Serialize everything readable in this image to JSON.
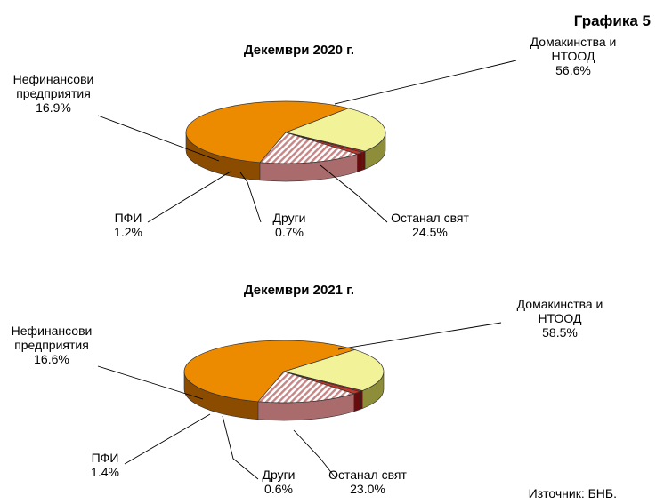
{
  "figure_label": "Графика 5",
  "source": "Източник: БНБ.",
  "colors": {
    "households": "#ED8B00",
    "households_side": "#8B4C00",
    "rest_of_world": "#F2F298",
    "rest_of_world_side": "#8E8E3A",
    "ofi": "#C0392B",
    "ofi_side": "#6B0A0A",
    "other": "#B22B2B",
    "nonfinancial_stripe": "#C78686"
  },
  "chart_data": [
    {
      "type": "pie",
      "title": "Декември 2020 г.",
      "slices": [
        {
          "name": "Домакинства и НТООД",
          "value": 56.6,
          "label": "Домакинства  и",
          "label2": "НТООД",
          "pct": "56.6%"
        },
        {
          "name": "Останал свят",
          "value": 24.5,
          "label": "Останал  свят",
          "pct": "24.5%"
        },
        {
          "name": "Други",
          "value": 0.7,
          "label": "Други",
          "pct": "0.7%"
        },
        {
          "name": "ПФИ",
          "value": 1.2,
          "label": "ПФИ",
          "pct": "1.2%"
        },
        {
          "name": "Нефинансови предприятия",
          "value": 16.9,
          "label": "Нефинансови",
          "label2": "предприятия",
          "pct": "16.9%"
        }
      ]
    },
    {
      "type": "pie",
      "title": "Декември 2021 г.",
      "slices": [
        {
          "name": "Домакинства и НТООД",
          "value": 58.5,
          "label": "Домакинства  и",
          "label2": "НТООД",
          "pct": "58.5%"
        },
        {
          "name": "Останал свят",
          "value": 23.0,
          "label": "Останал  свят",
          "pct": "23.0%"
        },
        {
          "name": "Други",
          "value": 0.6,
          "label": "Други",
          "pct": "0.6%"
        },
        {
          "name": "ПФИ",
          "value": 1.4,
          "label": "ПФИ",
          "pct": "1.4%"
        },
        {
          "name": "Нефинансови предприятия",
          "value": 16.6,
          "label": "Нефинансови",
          "label2": "предприятия",
          "pct": "16.6%"
        }
      ]
    }
  ]
}
